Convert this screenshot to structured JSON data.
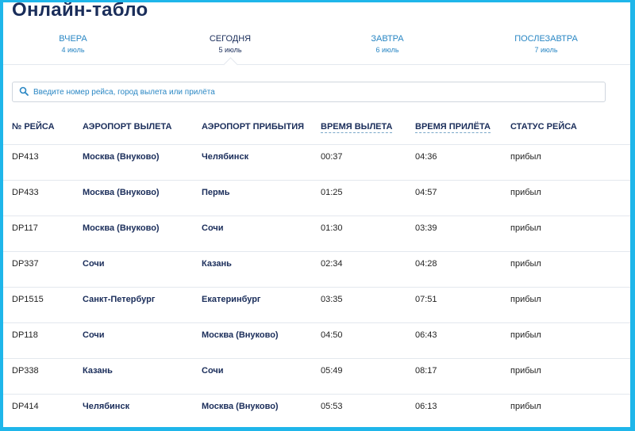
{
  "page": {
    "title": "Онлайн-табло"
  },
  "tabs": [
    {
      "label": "ВЧЕРА",
      "date": "4 июль"
    },
    {
      "label": "СЕГОДНЯ",
      "date": "5 июль"
    },
    {
      "label": "ЗАВТРА",
      "date": "6 июль"
    },
    {
      "label": "ПОСЛЕЗАВТРА",
      "date": "7 июль"
    }
  ],
  "search": {
    "placeholder": "Введите номер рейса, город вылета или прилёта",
    "value": ""
  },
  "table": {
    "headers": {
      "flight": "№ РЕЙСА",
      "departure_airport": "АЭРОПОРТ ВЫЛЕТА",
      "arrival_airport": "АЭРОПОРТ ПРИБЫТИЯ",
      "departure_time": "ВРЕМЯ ВЫЛЕТА",
      "arrival_time": "ВРЕМЯ ПРИЛЁТА",
      "status": "СТАТУС РЕЙСА"
    },
    "rows": [
      {
        "flight": "DP413",
        "from": "Москва (Внуково)",
        "to": "Челябинск",
        "dep": "00:37",
        "arr": "04:36",
        "status": "прибыл"
      },
      {
        "flight": "DP433",
        "from": "Москва (Внуково)",
        "to": "Пермь",
        "dep": "01:25",
        "arr": "04:57",
        "status": "прибыл"
      },
      {
        "flight": "DP117",
        "from": "Москва (Внуково)",
        "to": "Сочи",
        "dep": "01:30",
        "arr": "03:39",
        "status": "прибыл"
      },
      {
        "flight": "DP337",
        "from": "Сочи",
        "to": "Казань",
        "dep": "02:34",
        "arr": "04:28",
        "status": "прибыл"
      },
      {
        "flight": "DP1515",
        "from": "Санкт-Петербург",
        "to": "Екатеринбург",
        "dep": "03:35",
        "arr": "07:51",
        "status": "прибыл"
      },
      {
        "flight": "DP118",
        "from": "Сочи",
        "to": "Москва (Внуково)",
        "dep": "04:50",
        "arr": "06:43",
        "status": "прибыл"
      },
      {
        "flight": "DP338",
        "from": "Казань",
        "to": "Сочи",
        "dep": "05:49",
        "arr": "08:17",
        "status": "прибыл"
      },
      {
        "flight": "DP414",
        "from": "Челябинск",
        "to": "Москва (Внуково)",
        "dep": "05:53",
        "arr": "06:13",
        "status": "прибыл"
      }
    ]
  },
  "colors": {
    "frame_border": "#1fb6ea",
    "title": "#1a2d5a",
    "link": "#2a87c4"
  },
  "icons": {
    "search": "search-icon"
  }
}
